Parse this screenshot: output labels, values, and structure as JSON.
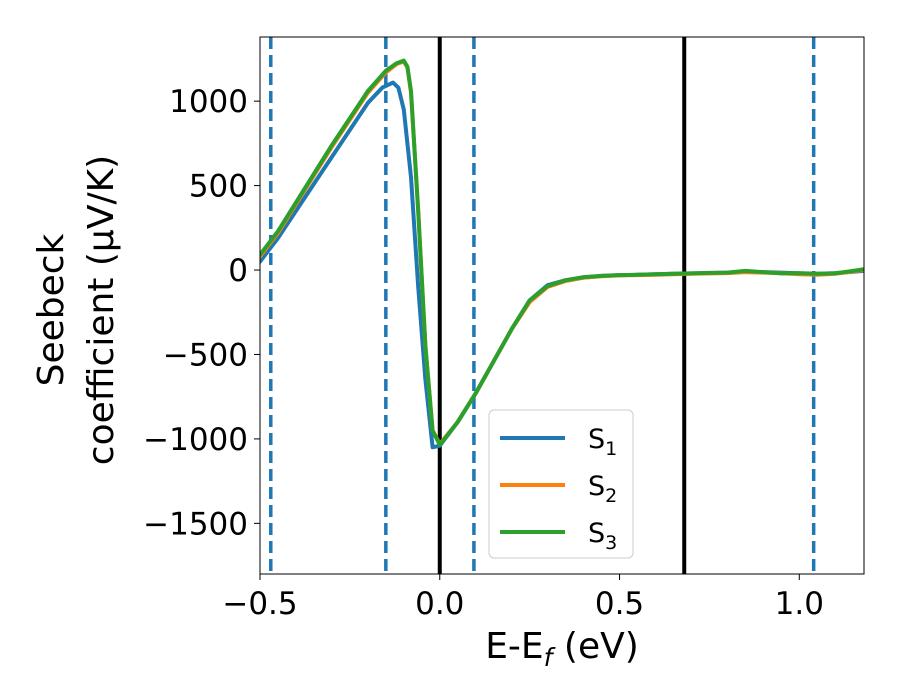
{
  "chart_data": {
    "type": "line",
    "xlabel": "E-E",
    "xlabel_sub": "f",
    "xlabel_unit": " (eV)",
    "ylabel_line1": "Seebeck",
    "ylabel_line2": "coefficient  (μV/K)",
    "xlim": [
      -0.5,
      1.18
    ],
    "ylim": [
      -1800,
      1380
    ],
    "xticks": [
      -0.5,
      0.0,
      0.5,
      1.0
    ],
    "xtick_labels": [
      "−0.5",
      "0.0",
      "0.5",
      "1.0"
    ],
    "yticks": [
      1000,
      500,
      0,
      -500,
      -1000,
      -1500
    ],
    "ytick_labels": [
      "1000",
      "500",
      "0",
      "−500",
      "−1000",
      "−1500"
    ],
    "legend_position": "lower-center",
    "vertical_lines": [
      {
        "x": -0.47,
        "style": "dashed",
        "color": "#1f77b4"
      },
      {
        "x": -0.15,
        "style": "dashed",
        "color": "#1f77b4"
      },
      {
        "x": 0.0,
        "style": "solid",
        "color": "#000000"
      },
      {
        "x": 0.095,
        "style": "dashed",
        "color": "#1f77b4"
      },
      {
        "x": 0.68,
        "style": "solid",
        "color": "#000000"
      },
      {
        "x": 1.04,
        "style": "dashed",
        "color": "#1f77b4"
      }
    ],
    "series": [
      {
        "name": "S",
        "name_sub": "1",
        "color": "#1f77b4",
        "x": [
          -0.5,
          -0.45,
          -0.4,
          -0.35,
          -0.3,
          -0.25,
          -0.2,
          -0.16,
          -0.13,
          -0.115,
          -0.1,
          -0.08,
          -0.06,
          -0.04,
          -0.02,
          0.0,
          0.05,
          0.1,
          0.15,
          0.2,
          0.25,
          0.3,
          0.35,
          0.4,
          0.45,
          0.5,
          0.55,
          0.6,
          0.65,
          0.7,
          0.75,
          0.8,
          0.85,
          0.9,
          0.95,
          1.0,
          1.05,
          1.1,
          1.15,
          1.18
        ],
        "y": [
          50,
          190,
          350,
          510,
          670,
          830,
          990,
          1080,
          1110,
          1080,
          950,
          550,
          -100,
          -650,
          -1050,
          -1040,
          -900,
          -730,
          -540,
          -350,
          -180,
          -90,
          -60,
          -45,
          -35,
          -30,
          -28,
          -25,
          -22,
          -20,
          -18,
          -15,
          -10,
          -12,
          -15,
          -20,
          -22,
          -18,
          -10,
          -5
        ]
      },
      {
        "name": "S",
        "name_sub": "2",
        "color": "#ff7f0e",
        "x": [
          -0.5,
          -0.45,
          -0.4,
          -0.35,
          -0.3,
          -0.25,
          -0.2,
          -0.15,
          -0.12,
          -0.1,
          -0.09,
          -0.08,
          -0.06,
          -0.04,
          -0.02,
          0.0,
          0.05,
          0.1,
          0.15,
          0.2,
          0.25,
          0.3,
          0.35,
          0.4,
          0.45,
          0.5,
          0.55,
          0.6,
          0.65,
          0.7,
          0.75,
          0.8,
          0.85,
          0.9,
          0.95,
          1.0,
          1.05,
          1.1,
          1.15,
          1.18
        ],
        "y": [
          80,
          220,
          390,
          560,
          730,
          890,
          1050,
          1170,
          1220,
          1235,
          1200,
          1050,
          350,
          -450,
          -950,
          -1030,
          -900,
          -730,
          -540,
          -350,
          -190,
          -100,
          -65,
          -45,
          -37,
          -32,
          -30,
          -28,
          -25,
          -22,
          -20,
          -18,
          -12,
          -15,
          -18,
          -25,
          -28,
          -22,
          -8,
          0
        ]
      },
      {
        "name": "S",
        "name_sub": "3",
        "color": "#2ca02c",
        "x": [
          -0.5,
          -0.45,
          -0.4,
          -0.35,
          -0.3,
          -0.25,
          -0.2,
          -0.15,
          -0.12,
          -0.1,
          -0.09,
          -0.08,
          -0.06,
          -0.04,
          -0.02,
          0.0,
          0.05,
          0.1,
          0.15,
          0.2,
          0.25,
          0.3,
          0.35,
          0.4,
          0.45,
          0.5,
          0.55,
          0.6,
          0.65,
          0.7,
          0.75,
          0.8,
          0.85,
          0.9,
          0.95,
          1.0,
          1.05,
          1.1,
          1.15,
          1.18
        ],
        "y": [
          90,
          230,
          400,
          570,
          740,
          900,
          1060,
          1180,
          1225,
          1240,
          1205,
          1060,
          350,
          -450,
          -950,
          -1035,
          -900,
          -730,
          -540,
          -350,
          -180,
          -95,
          -60,
          -42,
          -35,
          -30,
          -28,
          -25,
          -22,
          -20,
          -17,
          -15,
          -5,
          -12,
          -20,
          -18,
          -22,
          -20,
          -5,
          5
        ]
      }
    ]
  }
}
